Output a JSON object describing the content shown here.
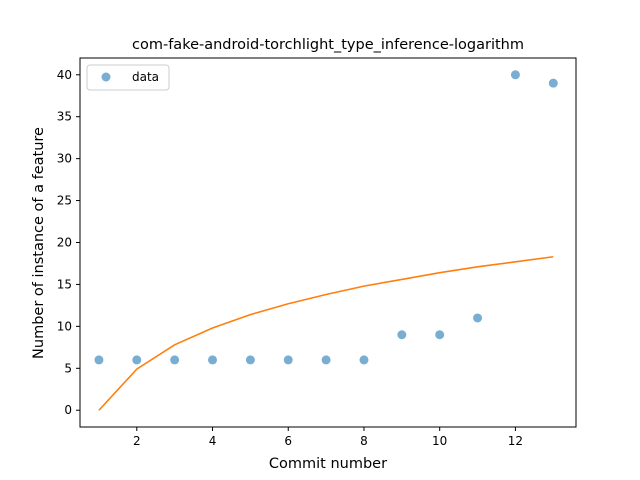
{
  "chart_data": {
    "type": "scatter",
    "title": "com-fake-android-torchlight_type_inference-logarithm",
    "xlabel": "Commit number",
    "ylabel": "Number of instance of a feature",
    "xlim": [
      0.5,
      13.6
    ],
    "ylim": [
      -2.0,
      42.0
    ],
    "xticks": [
      2,
      4,
      6,
      8,
      10,
      12
    ],
    "yticks": [
      0,
      5,
      10,
      15,
      20,
      25,
      30,
      35,
      40
    ],
    "grid": false,
    "legend": {
      "position": "top-left",
      "entries": [
        "data"
      ]
    },
    "series": [
      {
        "name": "data",
        "kind": "scatter",
        "color": "#1f77b4",
        "x": [
          1,
          2,
          3,
          4,
          5,
          6,
          7,
          8,
          9,
          10,
          11,
          12,
          13
        ],
        "y": [
          6,
          6,
          6,
          6,
          6,
          6,
          6,
          6,
          9,
          9,
          11,
          40,
          39
        ]
      },
      {
        "kind": "line",
        "color": "#ff7f0e",
        "x": [
          1,
          2,
          3,
          4,
          5,
          6,
          7,
          8,
          9,
          10,
          11,
          12,
          13
        ],
        "y": [
          0.0,
          4.9,
          7.8,
          9.8,
          11.4,
          12.7,
          13.8,
          14.8,
          15.6,
          16.4,
          17.1,
          17.7,
          18.3
        ]
      }
    ]
  }
}
